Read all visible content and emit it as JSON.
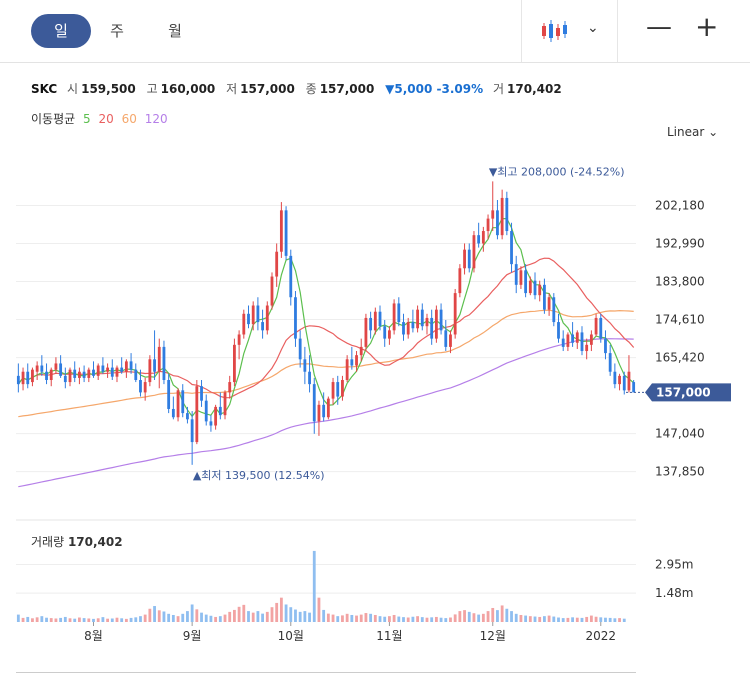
{
  "tabs": {
    "day": "일",
    "week": "주",
    "month": "월"
  },
  "quote": {
    "symbol": "SKC",
    "open_label": "시",
    "open": "159,500",
    "high_label": "고",
    "high": "160,000",
    "low_label": "저",
    "low": "157,000",
    "close_label": "종",
    "close": "157,000",
    "change": "▼5,000 -3.09%",
    "volume_label": "거",
    "volume": "170,402"
  },
  "ma": {
    "label": "이동평균",
    "p5": "5",
    "p20": "20",
    "p60": "60",
    "p120": "120"
  },
  "scale": "Linear",
  "volume_title": {
    "label": "거래량",
    "value": "170,402"
  },
  "colors": {
    "up": "#e04646",
    "down": "#2f7ce0",
    "ma5": "#5cbf4e",
    "ma20": "#e96060",
    "ma60": "#f5a76b",
    "ma120": "#b57fe8",
    "accent": "#3c5a99"
  },
  "chart_data": {
    "type": "candlestick",
    "y_ticks": [
      "202,180",
      "192,990",
      "183,800",
      "174,610",
      "165,420",
      "147,040",
      "137,850"
    ],
    "y_tick_values": [
      202180,
      192990,
      183800,
      174610,
      165420,
      147040,
      137850
    ],
    "ylim": [
      131000,
      218000
    ],
    "x_labels": [
      "8월",
      "9월",
      "10월",
      "11월",
      "12월",
      "2022"
    ],
    "x_label_index": [
      16,
      37,
      58,
      79,
      101,
      124
    ],
    "last_price_label": "157,000",
    "last_price": 157000,
    "high_annotation": {
      "text": "▼최고 208,000 (-24.52%)",
      "index": 104,
      "value": 208000
    },
    "low_annotation": {
      "text": "▲최저 139,500 (12.54%)",
      "index": 38,
      "value": 139500
    },
    "volume_ticks": [
      "2.95m",
      "1.48m"
    ],
    "volume_tick_values": [
      2950000,
      1480000
    ],
    "volume_max": 3800000,
    "candles": [
      [
        161000,
        164000,
        157000,
        159000
      ],
      [
        159000,
        163000,
        157500,
        162000
      ],
      [
        162000,
        164000,
        158000,
        159000
      ],
      [
        159500,
        163000,
        158500,
        162500
      ],
      [
        162000,
        164500,
        160000,
        163500
      ],
      [
        163500,
        166000,
        161000,
        162000
      ],
      [
        162000,
        164000,
        159000,
        160000
      ],
      [
        160000,
        163000,
        158500,
        162500
      ],
      [
        162500,
        165500,
        161500,
        164000
      ],
      [
        164000,
        166000,
        160500,
        161000
      ],
      [
        161000,
        163000,
        158000,
        159500
      ],
      [
        159500,
        163000,
        158500,
        162500
      ],
      [
        162500,
        164500,
        159500,
        160500
      ],
      [
        160500,
        163000,
        159000,
        162000
      ],
      [
        162000,
        163500,
        159500,
        160500
      ],
      [
        160500,
        163000,
        159500,
        162500
      ],
      [
        162500,
        164500,
        160500,
        161000
      ],
      [
        161000,
        164000,
        160000,
        163500
      ],
      [
        163500,
        165500,
        161500,
        162000
      ],
      [
        162000,
        164000,
        160500,
        163000
      ],
      [
        163000,
        165000,
        160000,
        160800
      ],
      [
        160800,
        163500,
        159500,
        163000
      ],
      [
        163000,
        165500,
        161500,
        162000
      ],
      [
        162000,
        165000,
        160500,
        164500
      ],
      [
        164500,
        166500,
        161500,
        162500
      ],
      [
        162500,
        164000,
        159500,
        160000
      ],
      [
        160000,
        162500,
        156000,
        157000
      ],
      [
        157000,
        160500,
        155000,
        159500
      ],
      [
        159500,
        166000,
        158500,
        165000
      ],
      [
        165000,
        172000,
        160000,
        162000
      ],
      [
        162000,
        170000,
        158000,
        168000
      ],
      [
        168000,
        169500,
        159000,
        160000
      ],
      [
        160000,
        161500,
        152000,
        153000
      ],
      [
        153000,
        156000,
        150500,
        151000
      ],
      [
        151000,
        158000,
        150000,
        157500
      ],
      [
        157500,
        159000,
        151000,
        152000
      ],
      [
        152000,
        153500,
        149500,
        150500
      ],
      [
        150500,
        152500,
        139500,
        145000
      ],
      [
        145000,
        160000,
        144500,
        158500
      ],
      [
        158500,
        160000,
        153500,
        155000
      ],
      [
        155000,
        156500,
        149000,
        150000
      ],
      [
        150000,
        151500,
        147500,
        149000
      ],
      [
        149000,
        154000,
        148000,
        153500
      ],
      [
        153500,
        157000,
        150500,
        151500
      ],
      [
        151500,
        157500,
        150500,
        157000
      ],
      [
        157000,
        161000,
        155500,
        159500
      ],
      [
        159500,
        170000,
        158500,
        168500
      ],
      [
        168500,
        172000,
        165000,
        171000
      ],
      [
        171000,
        177000,
        170000,
        176000
      ],
      [
        176000,
        178000,
        172500,
        173500
      ],
      [
        173500,
        179000,
        172000,
        178000
      ],
      [
        178000,
        180000,
        172000,
        174000
      ],
      [
        174000,
        177000,
        170000,
        172000
      ],
      [
        172000,
        179000,
        171000,
        178000
      ],
      [
        178000,
        186000,
        177000,
        185000
      ],
      [
        185000,
        193000,
        182500,
        191000
      ],
      [
        191000,
        203000,
        189500,
        201000
      ],
      [
        201000,
        202000,
        189000,
        190000
      ],
      [
        190000,
        191500,
        178000,
        180000
      ],
      [
        180000,
        181500,
        168000,
        170000
      ],
      [
        170000,
        172000,
        163000,
        165000
      ],
      [
        165000,
        168000,
        159000,
        162000
      ],
      [
        162000,
        166000,
        157000,
        159000
      ],
      [
        159000,
        160500,
        147000,
        150000
      ],
      [
        150000,
        155000,
        146500,
        154000
      ],
      [
        154000,
        157000,
        150000,
        151000
      ],
      [
        151000,
        156000,
        150500,
        155500
      ],
      [
        155500,
        160500,
        154000,
        159500
      ],
      [
        159500,
        161000,
        154000,
        156000
      ],
      [
        156000,
        161000,
        155000,
        160000
      ],
      [
        160000,
        166000,
        159500,
        165000
      ],
      [
        165000,
        168000,
        162500,
        163500
      ],
      [
        163500,
        167000,
        162000,
        166000
      ],
      [
        166000,
        170000,
        164500,
        168000
      ],
      [
        168000,
        176000,
        167000,
        175000
      ],
      [
        175000,
        176500,
        170000,
        172000
      ],
      [
        172000,
        177500,
        171000,
        176500
      ],
      [
        176500,
        178000,
        172000,
        173000
      ],
      [
        173000,
        174500,
        168000,
        170000
      ],
      [
        170000,
        173000,
        168500,
        172000
      ],
      [
        172000,
        179500,
        171000,
        178500
      ],
      [
        178500,
        180000,
        173000,
        174000
      ],
      [
        174000,
        176000,
        169500,
        171000
      ],
      [
        171000,
        175000,
        170000,
        174000
      ],
      [
        174000,
        177000,
        171500,
        172500
      ],
      [
        172500,
        178000,
        171500,
        177000
      ],
      [
        177000,
        178500,
        172000,
        173000
      ],
      [
        173000,
        176000,
        171000,
        175000
      ],
      [
        175000,
        177000,
        168500,
        170000
      ],
      [
        170000,
        178000,
        169000,
        177000
      ],
      [
        177000,
        178500,
        171000,
        172000
      ],
      [
        172000,
        174500,
        167000,
        168000
      ],
      [
        168000,
        172000,
        166500,
        171000
      ],
      [
        171000,
        182000,
        170000,
        181000
      ],
      [
        181000,
        188000,
        180000,
        187000
      ],
      [
        187000,
        193000,
        185500,
        191500
      ],
      [
        191500,
        193000,
        186000,
        187000
      ],
      [
        187000,
        196000,
        186000,
        195000
      ],
      [
        195000,
        198000,
        192000,
        193000
      ],
      [
        193000,
        197000,
        191000,
        196000
      ],
      [
        196000,
        200000,
        194000,
        199000
      ],
      [
        199000,
        208000,
        196000,
        201000
      ],
      [
        201000,
        203500,
        194000,
        195000
      ],
      [
        195000,
        206000,
        194000,
        204000
      ],
      [
        204000,
        205500,
        195000,
        196000
      ],
      [
        196000,
        198000,
        186000,
        188000
      ],
      [
        188000,
        190000,
        181000,
        183000
      ],
      [
        183000,
        187500,
        182000,
        186500
      ],
      [
        186500,
        188000,
        180000,
        181000
      ],
      [
        181000,
        185000,
        180500,
        184000
      ],
      [
        184000,
        186000,
        179500,
        180500
      ],
      [
        180500,
        184000,
        179000,
        183000
      ],
      [
        183000,
        184500,
        176000,
        177000
      ],
      [
        177000,
        181000,
        175500,
        180000
      ],
      [
        180000,
        181000,
        173000,
        174000
      ],
      [
        174000,
        176000,
        169000,
        170000
      ],
      [
        170000,
        172000,
        167000,
        168000
      ],
      [
        168000,
        171500,
        167000,
        171000
      ],
      [
        171000,
        174000,
        168000,
        169000
      ],
      [
        169000,
        172000,
        167500,
        171500
      ],
      [
        171500,
        173000,
        166000,
        167000
      ],
      [
        167000,
        170000,
        165000,
        168500
      ],
      [
        168500,
        172000,
        167000,
        171000
      ],
      [
        171000,
        176000,
        170500,
        175000
      ],
      [
        175000,
        176000,
        169000,
        170000
      ],
      [
        170000,
        172000,
        165000,
        166500
      ],
      [
        166500,
        168500,
        161000,
        162000
      ],
      [
        162000,
        164000,
        158000,
        159000
      ],
      [
        159000,
        161500,
        157500,
        161000
      ],
      [
        161000,
        162000,
        156500,
        157500
      ],
      [
        157500,
        166000,
        157000,
        162000
      ],
      [
        159500,
        160000,
        157000,
        157000
      ]
    ],
    "volumes": [
      380000,
      210000,
      260000,
      190000,
      240000,
      300000,
      220000,
      200000,
      180000,
      210000,
      260000,
      190000,
      170000,
      230000,
      200000,
      180000,
      160000,
      190000,
      250000,
      170000,
      180000,
      220000,
      190000,
      160000,
      210000,
      240000,
      300000,
      380000,
      680000,
      820000,
      600000,
      540000,
      420000,
      360000,
      300000,
      420000,
      560000,
      900000,
      650000,
      480000,
      380000,
      320000,
      260000,
      300000,
      380000,
      520000,
      620000,
      780000,
      880000,
      560000,
      480000,
      560000,
      430000,
      520000,
      760000,
      980000,
      1250000,
      900000,
      760000,
      640000,
      520000,
      560000,
      480000,
      3650000,
      1250000,
      620000,
      430000,
      380000,
      300000,
      340000,
      420000,
      360000,
      330000,
      380000,
      460000,
      420000,
      360000,
      300000,
      270000,
      300000,
      360000,
      280000,
      250000,
      230000,
      270000,
      300000,
      250000,
      220000,
      240000,
      260000,
      220000,
      200000,
      230000,
      390000,
      560000,
      610000,
      520000,
      450000,
      380000,
      420000,
      560000,
      720000,
      610000,
      850000,
      680000,
      560000,
      420000,
      360000,
      330000,
      300000,
      280000,
      260000,
      300000,
      330000,
      280000,
      230000,
      200000,
      210000,
      240000,
      220000,
      210000,
      260000,
      330000,
      270000,
      240000,
      220000,
      210000,
      190000,
      200000,
      170402
    ]
  }
}
